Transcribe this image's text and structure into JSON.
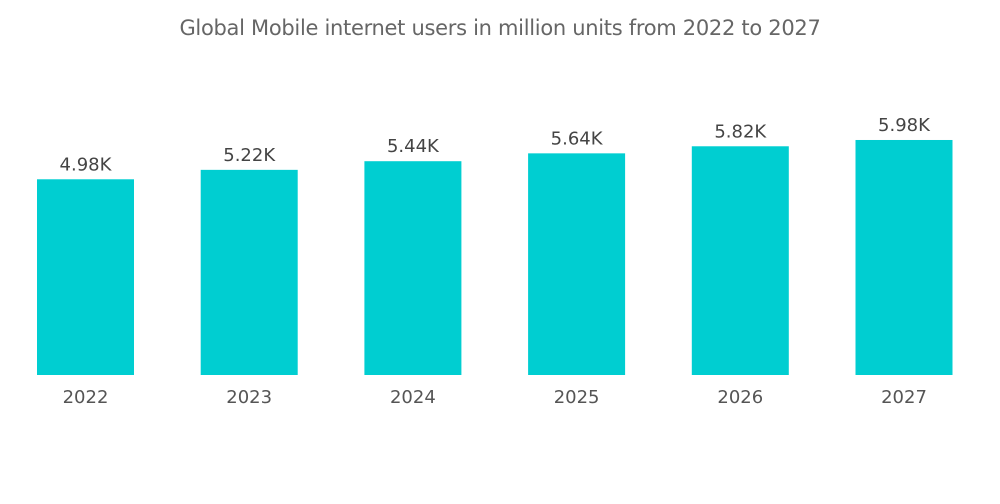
{
  "chart_data": {
    "type": "bar",
    "title": "Global Mobile internet users in million units from 2022 to 2027",
    "categories": [
      "2022",
      "2023",
      "2024",
      "2025",
      "2026",
      "2027"
    ],
    "values": [
      4.98,
      5.22,
      5.44,
      5.64,
      5.82,
      5.98
    ],
    "data_labels": [
      "4.98K",
      "5.22K",
      "5.44K",
      "5.64K",
      "5.82K",
      "5.98K"
    ],
    "xlabel": "",
    "ylabel": "",
    "ylim": [
      0,
      6.5
    ],
    "grid": false,
    "legend": "none",
    "bar_color": "#00CED1"
  }
}
